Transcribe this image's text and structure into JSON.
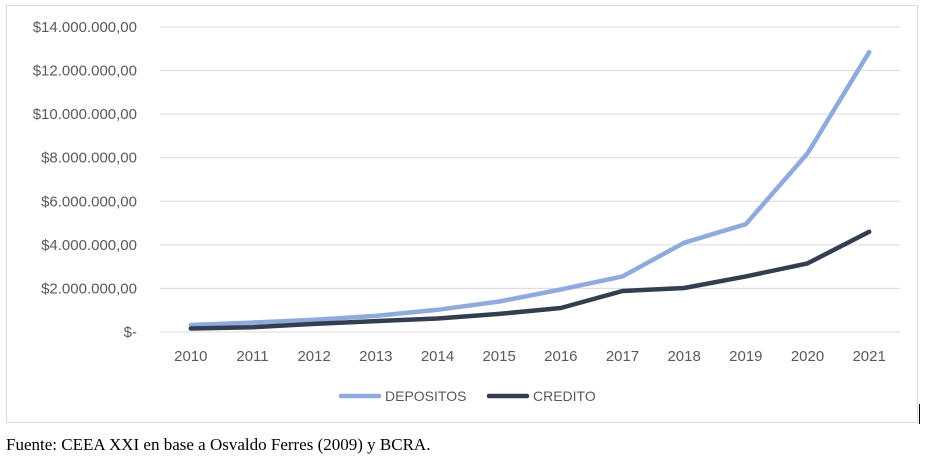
{
  "chart_data": {
    "type": "line",
    "title": "",
    "xlabel": "",
    "ylabel": "",
    "categories": [
      "2010",
      "2011",
      "2012",
      "2013",
      "2014",
      "2015",
      "2016",
      "2017",
      "2018",
      "2019",
      "2020",
      "2021"
    ],
    "ylim": [
      0,
      14000000
    ],
    "y_ticks": [
      0,
      2000000,
      4000000,
      6000000,
      8000000,
      10000000,
      12000000,
      14000000
    ],
    "y_tick_labels": [
      "$-",
      "$2.000.000,00",
      "$4.000.000,00",
      "$6.000.000,00",
      "$8.000.000,00",
      "$10.000.000,00",
      "$12.000.000,00",
      "$14.000.000,00"
    ],
    "grid": true,
    "legend_position": "bottom",
    "series": [
      {
        "name": "DEPOSITOS",
        "color": "#8faadc",
        "values": [
          320000,
          430000,
          560000,
          740000,
          1020000,
          1400000,
          1950000,
          2550000,
          4100000,
          4950000,
          8200000,
          12850000
        ]
      },
      {
        "name": "CREDITO",
        "color": "#333f50",
        "values": [
          160000,
          220000,
          370000,
          500000,
          620000,
          830000,
          1100000,
          1880000,
          2020000,
          2550000,
          3150000,
          4600000
        ]
      }
    ]
  },
  "source_note": "Fuente: CEEA XXI en base a Osvaldo Ferres (2009) y BCRA."
}
